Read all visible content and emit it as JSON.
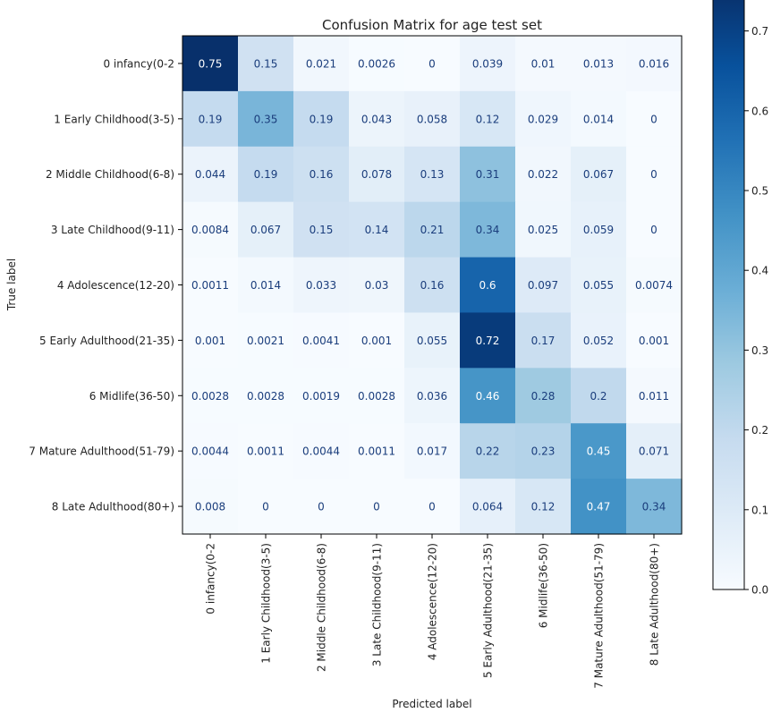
{
  "chart_data": {
    "type": "heatmap",
    "title": "Confusion Matrix for age test set",
    "xlabel": "Predicted label",
    "ylabel": "True label",
    "categories": [
      "0 infancy(0-2",
      "1 Early Childhood(3-5)",
      "2 Middle Childhood(6-8)",
      "3 Late Childhood(9-11)",
      "4 Adolescence(12-20)",
      "5 Early Adulthood(21-35)",
      "6 Midlife(36-50)",
      "7 Mature Adulthood(51-79)",
      "8 Late Adulthood(80+)"
    ],
    "matrix_labels": [
      [
        "0.75",
        "0.15",
        "0.021",
        "0.0026",
        "0",
        "0.039",
        "0.01",
        "0.013",
        "0.016"
      ],
      [
        "0.19",
        "0.35",
        "0.19",
        "0.043",
        "0.058",
        "0.12",
        "0.029",
        "0.014",
        "0"
      ],
      [
        "0.044",
        "0.19",
        "0.16",
        "0.078",
        "0.13",
        "0.31",
        "0.022",
        "0.067",
        "0"
      ],
      [
        "0.0084",
        "0.067",
        "0.15",
        "0.14",
        "0.21",
        "0.34",
        "0.025",
        "0.059",
        "0"
      ],
      [
        "0.0011",
        "0.014",
        "0.033",
        "0.03",
        "0.16",
        "0.6",
        "0.097",
        "0.055",
        "0.0074"
      ],
      [
        "0.001",
        "0.0021",
        "0.0041",
        "0.001",
        "0.055",
        "0.72",
        "0.17",
        "0.052",
        "0.001"
      ],
      [
        "0.0028",
        "0.0028",
        "0.0019",
        "0.0028",
        "0.036",
        "0.46",
        "0.28",
        "0.2",
        "0.011"
      ],
      [
        "0.0044",
        "0.0011",
        "0.0044",
        "0.0011",
        "0.017",
        "0.22",
        "0.23",
        "0.45",
        "0.071"
      ],
      [
        "0.008",
        "0",
        "0",
        "0",
        "0",
        "0.064",
        "0.12",
        "0.47",
        "0.34"
      ]
    ],
    "colorbar": {
      "range": [
        0,
        0.75
      ],
      "ticks": [
        "0.0",
        "0.1",
        "0.2",
        "0.3",
        "0.4",
        "0.5",
        "0.6",
        "0.7"
      ],
      "colormap": "Blues"
    },
    "grid": false
  }
}
